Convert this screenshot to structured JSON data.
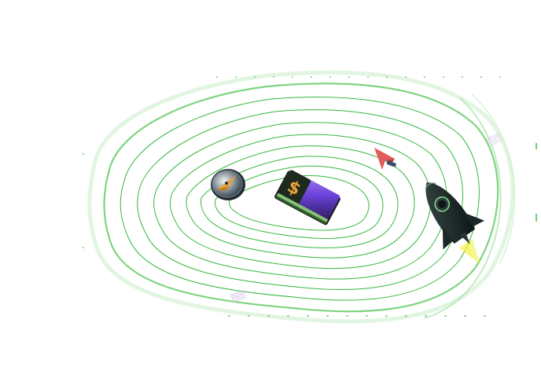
{
  "scene": {
    "accent_green": "#1fae2b",
    "light_green": "#8fd88f",
    "objects": [
      {
        "name": "compass-icon"
      },
      {
        "name": "banknote-stack-icon"
      },
      {
        "name": "cursor-arrow-icon"
      },
      {
        "name": "rocket-icon"
      },
      {
        "name": "envelope-icon"
      }
    ]
  }
}
